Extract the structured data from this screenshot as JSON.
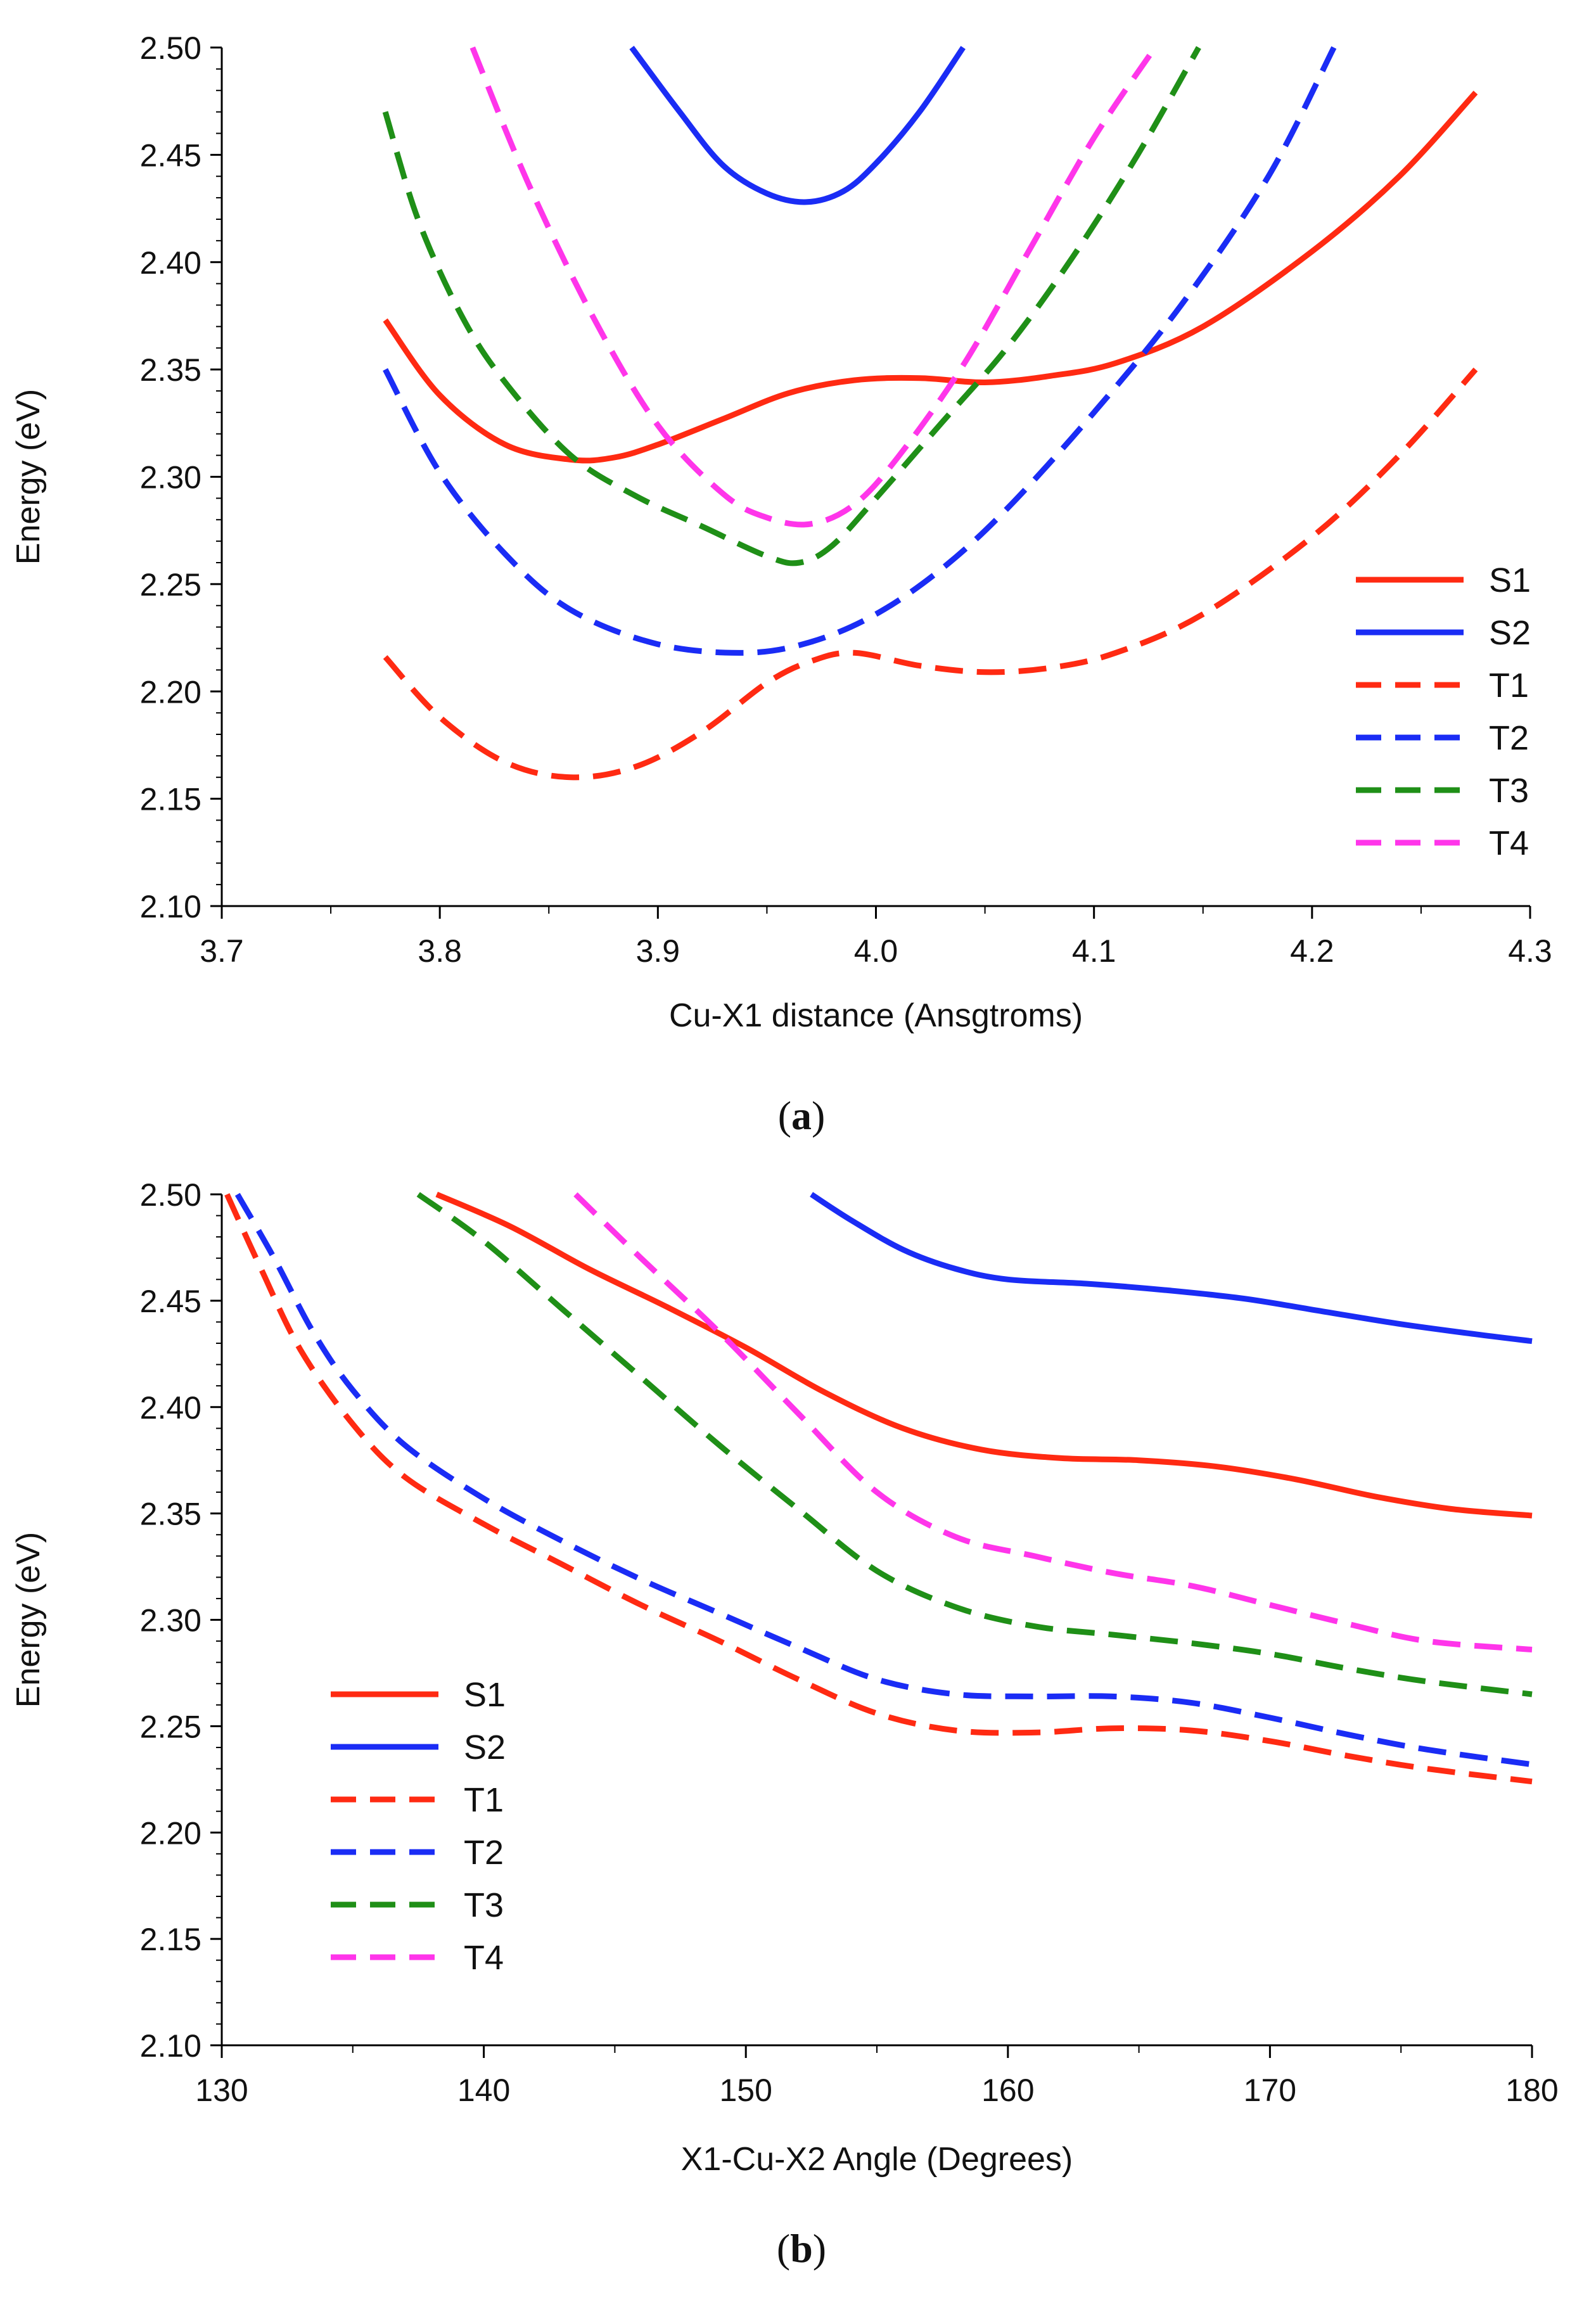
{
  "chart_data": [
    {
      "type": "line",
      "panel": "a",
      "title": "",
      "xlabel": "Cu-X1 distance (Ansgtroms)",
      "ylabel": "Energy (eV)",
      "xlim": [
        3.7,
        4.3
      ],
      "ylim": [
        2.1,
        2.5
      ],
      "xticks": [
        "3.7",
        "3.8",
        "3.9",
        "4.0",
        "4.1",
        "4.2",
        "4.3"
      ],
      "yticks": [
        "2.10",
        "2.15",
        "2.20",
        "2.25",
        "2.30",
        "2.35",
        "2.40",
        "2.45",
        "2.50"
      ],
      "grid": false,
      "legend_position": "bottom-right",
      "series": [
        {
          "name": "S1",
          "color": "#ff2a12",
          "dash": "solid",
          "x": [
            3.775,
            3.8,
            3.83,
            3.86,
            3.88,
            3.9,
            3.93,
            3.96,
            3.99,
            4.02,
            4.05,
            4.08,
            4.11,
            4.15,
            4.2,
            4.24,
            4.275
          ],
          "y": [
            2.373,
            2.338,
            2.315,
            2.308,
            2.309,
            2.315,
            2.327,
            2.339,
            2.345,
            2.346,
            2.344,
            2.347,
            2.353,
            2.37,
            2.405,
            2.44,
            2.479
          ]
        },
        {
          "name": "S2",
          "color": "#1a2cf5",
          "dash": "solid",
          "x": [
            3.888,
            3.91,
            3.93,
            3.95,
            3.968,
            3.985,
            4.0,
            4.02,
            4.04
          ],
          "y": [
            2.5,
            2.47,
            2.445,
            2.432,
            2.428,
            2.433,
            2.446,
            2.47,
            2.5
          ]
        },
        {
          "name": "T1",
          "color": "#ff2a12",
          "dash": "dashed",
          "x": [
            3.775,
            3.8,
            3.83,
            3.86,
            3.89,
            3.92,
            3.95,
            3.97,
            3.99,
            4.02,
            4.05,
            4.08,
            4.11,
            4.15,
            4.2,
            4.24,
            4.275
          ],
          "y": [
            2.216,
            2.188,
            2.167,
            2.16,
            2.165,
            2.181,
            2.204,
            2.214,
            2.218,
            2.212,
            2.209,
            2.211,
            2.218,
            2.236,
            2.272,
            2.31,
            2.35
          ]
        },
        {
          "name": "T2",
          "color": "#1a2cf5",
          "dash": "dashed",
          "x": [
            3.775,
            3.8,
            3.83,
            3.86,
            3.9,
            3.94,
            3.97,
            4.0,
            4.03,
            4.06,
            4.1,
            4.14,
            4.18,
            4.21
          ],
          "y": [
            2.35,
            2.302,
            2.264,
            2.238,
            2.222,
            2.218,
            2.223,
            2.236,
            2.257,
            2.285,
            2.33,
            2.38,
            2.44,
            2.5
          ]
        },
        {
          "name": "T3",
          "color": "#1f8f17",
          "dash": "dashed",
          "x": [
            3.775,
            3.79,
            3.81,
            3.83,
            3.86,
            3.89,
            3.92,
            3.95,
            3.965,
            3.98,
            4.0,
            4.03,
            4.06,
            4.09,
            4.12,
            4.148
          ],
          "y": [
            2.47,
            2.42,
            2.375,
            2.344,
            2.31,
            2.291,
            2.277,
            2.263,
            2.26,
            2.268,
            2.29,
            2.325,
            2.36,
            2.402,
            2.45,
            2.5
          ]
        },
        {
          "name": "T4",
          "color": "#ff35ea",
          "dash": "dashed",
          "x": [
            3.815,
            3.84,
            3.87,
            3.9,
            3.93,
            3.95,
            3.97,
            3.99,
            4.01,
            4.04,
            4.07,
            4.1,
            4.128
          ],
          "y": [
            2.5,
            2.438,
            2.375,
            2.324,
            2.292,
            2.281,
            2.278,
            2.287,
            2.309,
            2.352,
            2.405,
            2.458,
            2.5
          ]
        }
      ]
    },
    {
      "type": "line",
      "panel": "b",
      "title": "",
      "xlabel": "X1-Cu-X2 Angle (Degrees)",
      "ylabel": "Energy (eV)",
      "xlim": [
        130,
        180
      ],
      "ylim": [
        2.1,
        2.5
      ],
      "xticks": [
        "130",
        "140",
        "150",
        "160",
        "170",
        "180"
      ],
      "yticks": [
        "2.10",
        "2.15",
        "2.20",
        "2.25",
        "2.30",
        "2.35",
        "2.40",
        "2.45",
        "2.50"
      ],
      "grid": false,
      "legend_position": "bottom-left",
      "series": [
        {
          "name": "S1",
          "color": "#ff2a12",
          "dash": "solid",
          "x": [
            138.2,
            141,
            144,
            147,
            150,
            153,
            156,
            159,
            162,
            165,
            168,
            171,
            174,
            177,
            180
          ],
          "y": [
            2.5,
            2.485,
            2.465,
            2.447,
            2.428,
            2.407,
            2.39,
            2.38,
            2.376,
            2.375,
            2.372,
            2.366,
            2.358,
            2.352,
            2.349
          ]
        },
        {
          "name": "S2",
          "color": "#1a2cf5",
          "dash": "solid",
          "x": [
            152.5,
            154,
            156,
            158,
            160,
            163,
            166,
            169,
            172,
            175,
            178,
            180
          ],
          "y": [
            2.5,
            2.488,
            2.474,
            2.465,
            2.46,
            2.458,
            2.455,
            2.451,
            2.445,
            2.439,
            2.434,
            2.431
          ]
        },
        {
          "name": "T1",
          "color": "#ff2a12",
          "dash": "dashed",
          "x": [
            130.2,
            131.5,
            133,
            135,
            137,
            140,
            143,
            146,
            149,
            152,
            155,
            158,
            161,
            164,
            167,
            170,
            173,
            176,
            180
          ],
          "y": [
            2.5,
            2.465,
            2.427,
            2.392,
            2.367,
            2.345,
            2.326,
            2.307,
            2.29,
            2.272,
            2.256,
            2.248,
            2.247,
            2.249,
            2.248,
            2.243,
            2.236,
            2.23,
            2.224
          ]
        },
        {
          "name": "T2",
          "color": "#1a2cf5",
          "dash": "dashed",
          "x": [
            130.6,
            132,
            133.5,
            135,
            137,
            140,
            143,
            146,
            149,
            152,
            155,
            158,
            161,
            164,
            167,
            170,
            173,
            176,
            180
          ],
          "y": [
            2.5,
            2.47,
            2.435,
            2.408,
            2.382,
            2.357,
            2.337,
            2.319,
            2.303,
            2.287,
            2.272,
            2.265,
            2.264,
            2.264,
            2.261,
            2.254,
            2.246,
            2.239,
            2.232
          ]
        },
        {
          "name": "T3",
          "color": "#1f8f17",
          "dash": "dashed",
          "x": [
            137.5,
            140,
            143,
            146,
            149,
            152,
            155,
            158,
            161,
            164,
            167,
            170,
            173,
            176,
            180
          ],
          "y": [
            2.5,
            2.478,
            2.446,
            2.414,
            2.382,
            2.352,
            2.323,
            2.306,
            2.297,
            2.293,
            2.289,
            2.284,
            2.277,
            2.271,
            2.265
          ]
        },
        {
          "name": "T4",
          "color": "#ff35ea",
          "dash": "dashed",
          "x": [
            143.5,
            146,
            149,
            152,
            155,
            158,
            161,
            164,
            167,
            170,
            173,
            176,
            180
          ],
          "y": [
            2.5,
            2.47,
            2.435,
            2.397,
            2.36,
            2.339,
            2.33,
            2.322,
            2.316,
            2.307,
            2.298,
            2.29,
            2.286
          ]
        }
      ]
    }
  ],
  "panels": [
    {
      "label_open": "(",
      "label_letter": "a",
      "label_close": ")"
    },
    {
      "label_open": "(",
      "label_letter": "b",
      "label_close": ")"
    }
  ]
}
